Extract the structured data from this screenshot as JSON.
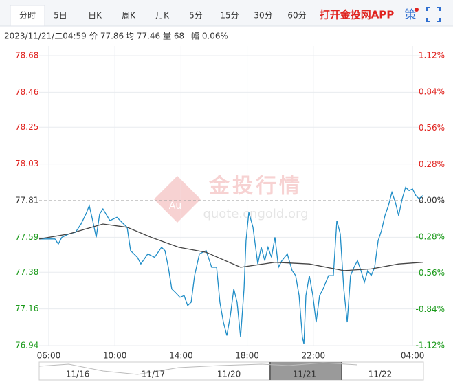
{
  "toolbar": {
    "tabs": [
      "分时",
      "5日",
      "日K",
      "周K",
      "月K",
      "5分",
      "15分",
      "30分",
      "60分"
    ],
    "app_link": "打开金投网APP",
    "strategy": "策"
  },
  "info": [
    "2023/11/21/二04:59",
    "价 77.86",
    "均 77.46",
    "量 68",
    "幅 0.06%"
  ],
  "watermark": {
    "logo": "Au",
    "title": "金投行情",
    "url": "quote.cngold.org"
  },
  "navigator": {
    "dates": [
      "11/16",
      "11/17",
      "11/20",
      "11/21",
      "11/22"
    ]
  },
  "chart_data": {
    "type": "line",
    "xlim": [
      5.42,
      28.66
    ],
    "xticks": [
      {
        "value": 6,
        "label": "06:00"
      },
      {
        "value": 10,
        "label": "10:00"
      },
      {
        "value": 14,
        "label": "14:00"
      },
      {
        "value": 18,
        "label": "18:00"
      },
      {
        "value": 22,
        "label": "22:00"
      },
      {
        "value": 28,
        "label": "04:00"
      }
    ],
    "ylim": [
      76.94,
      78.68
    ],
    "yticks": [
      78.68,
      78.46,
      78.25,
      78.03,
      77.81,
      77.59,
      77.38,
      77.16,
      76.94
    ],
    "y2lim": [
      -1.12,
      1.12
    ],
    "y2ticks": [
      {
        "value": 1.12,
        "label": "1.12%"
      },
      {
        "value": 0.84,
        "label": "0.84%"
      },
      {
        "value": 0.56,
        "label": "0.56%"
      },
      {
        "value": 0.28,
        "label": "0.28%"
      },
      {
        "value": 0,
        "label": "0.00%"
      },
      {
        "value": -0.28,
        "label": "-0.28%"
      },
      {
        "value": -0.56,
        "label": "-0.56%"
      },
      {
        "value": -0.84,
        "label": "-0.84%"
      },
      {
        "value": -1.12,
        "label": "-1.12%"
      }
    ],
    "grid": true,
    "series": [
      {
        "color": "#1f8dc7",
        "x": [
          5.42,
          6.37,
          6.58,
          6.79,
          7.21,
          7.62,
          7.95,
          8.25,
          8.45,
          8.66,
          8.87,
          9.08,
          9.28,
          9.7,
          10.12,
          10.53,
          10.74,
          10.95,
          11.36,
          11.57,
          11.99,
          12.4,
          12.82,
          13.03,
          13.23,
          13.44,
          13.65,
          13.94,
          14.19,
          14.4,
          14.61,
          14.82,
          15.11,
          15.52,
          15.85,
          16.15,
          16.35,
          16.56,
          16.77,
          16.98,
          17.19,
          17.39,
          17.6,
          17.81,
          17.93,
          18.1,
          18.35,
          18.64,
          18.85,
          19.06,
          19.26,
          19.47,
          19.68,
          19.89,
          20.1,
          20.43,
          20.72,
          20.93,
          21.14,
          21.34,
          21.43,
          21.55,
          21.76,
          21.97,
          22.17,
          22.38,
          22.59,
          22.92,
          23.21,
          23.42,
          23.63,
          23.84,
          24.05,
          24.25,
          24.46,
          24.67,
          24.88,
          25.09,
          25.29,
          25.5,
          25.71,
          25.92,
          26.12,
          26.33,
          26.54,
          26.75,
          26.96,
          27.16,
          27.37,
          27.58,
          27.79,
          28.0,
          28.2,
          28.41,
          28.62
        ],
        "values": [
          77.58,
          77.58,
          77.55,
          77.59,
          77.61,
          77.62,
          77.67,
          77.73,
          77.78,
          77.69,
          77.59,
          77.73,
          77.76,
          77.69,
          77.71,
          77.67,
          77.65,
          77.51,
          77.47,
          77.43,
          77.49,
          77.47,
          77.53,
          77.51,
          77.41,
          77.28,
          77.26,
          77.23,
          77.24,
          77.18,
          77.2,
          77.36,
          77.49,
          77.51,
          77.41,
          77.41,
          77.2,
          77.08,
          77.0,
          77.12,
          77.28,
          77.2,
          76.99,
          77.28,
          77.57,
          77.74,
          77.65,
          77.43,
          77.53,
          77.45,
          77.53,
          77.47,
          77.59,
          77.41,
          77.45,
          77.49,
          77.39,
          77.36,
          77.24,
          76.99,
          76.95,
          77.24,
          77.36,
          77.24,
          77.08,
          77.24,
          77.28,
          77.36,
          77.36,
          77.69,
          77.61,
          77.28,
          77.08,
          77.36,
          77.41,
          77.45,
          77.39,
          77.32,
          77.39,
          77.36,
          77.41,
          77.57,
          77.63,
          77.72,
          77.78,
          77.86,
          77.8,
          77.72,
          77.82,
          77.89,
          77.87,
          77.88,
          77.84,
          77.82,
          77.84
        ]
      },
      {
        "color": "#444444",
        "x": [
          5.42,
          7.21,
          9.28,
          10.74,
          12.19,
          13.86,
          15.52,
          17.6,
          19.68,
          21.76,
          23.84,
          25.5,
          27.16,
          28.62
        ],
        "values": [
          77.58,
          77.61,
          77.67,
          77.65,
          77.59,
          77.53,
          77.5,
          77.41,
          77.44,
          77.43,
          77.39,
          77.4,
          77.43,
          77.44
        ]
      }
    ]
  }
}
